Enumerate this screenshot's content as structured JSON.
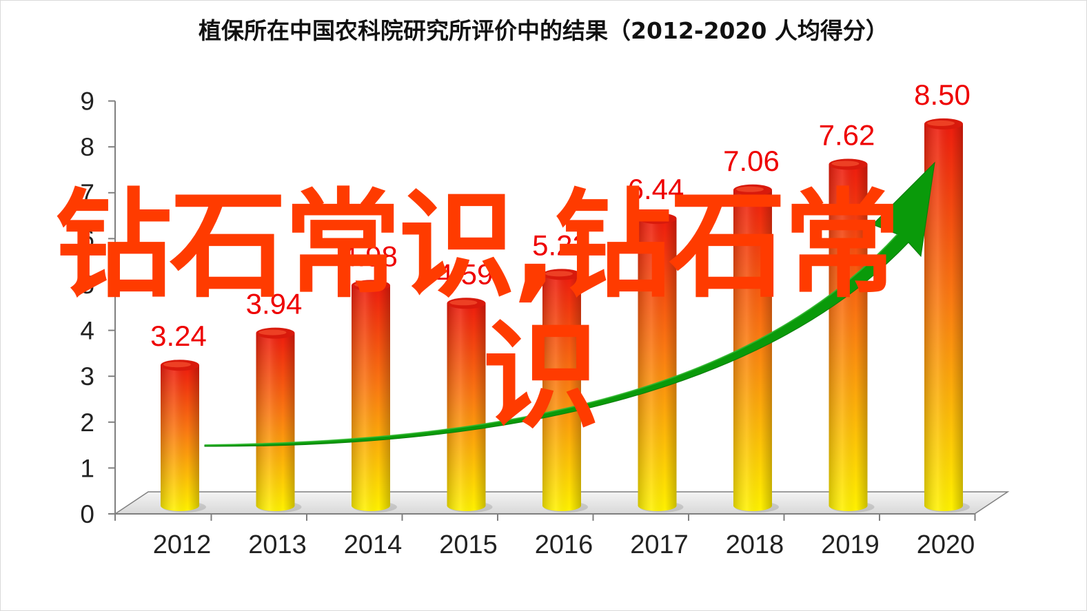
{
  "chart_data": {
    "type": "bar",
    "title": "植保所在中国农科院研究所评价中的结果（2012-2020 人均得分）",
    "categories": [
      "2012",
      "2013",
      "2014",
      "2015",
      "2016",
      "2017",
      "2018",
      "2019",
      "2020"
    ],
    "values": [
      3.24,
      3.94,
      4.98,
      4.59,
      5.22,
      6.44,
      7.06,
      7.62,
      8.5
    ],
    "value_labels": [
      "3.24",
      "3.94",
      "4.98",
      "4.59",
      "5.22",
      "6.44",
      "7.06",
      "7.62",
      "8.50"
    ],
    "ylim": [
      0,
      9
    ],
    "yticks": [
      "0",
      "1",
      "2",
      "3",
      "4",
      "5",
      "6",
      "7",
      "8",
      "9"
    ],
    "xlabel": "",
    "ylabel": "",
    "grid": false,
    "legend": "none",
    "colors": {
      "bar_top": "#ee1c0e",
      "bar_bottom": "#fff200",
      "value_label": "#ee0000",
      "trend_arrow": "#0a9a0a",
      "axis": "#7f7f7f"
    }
  },
  "watermark": {
    "line1": "钻石常识,钻石常",
    "line2": "识"
  }
}
